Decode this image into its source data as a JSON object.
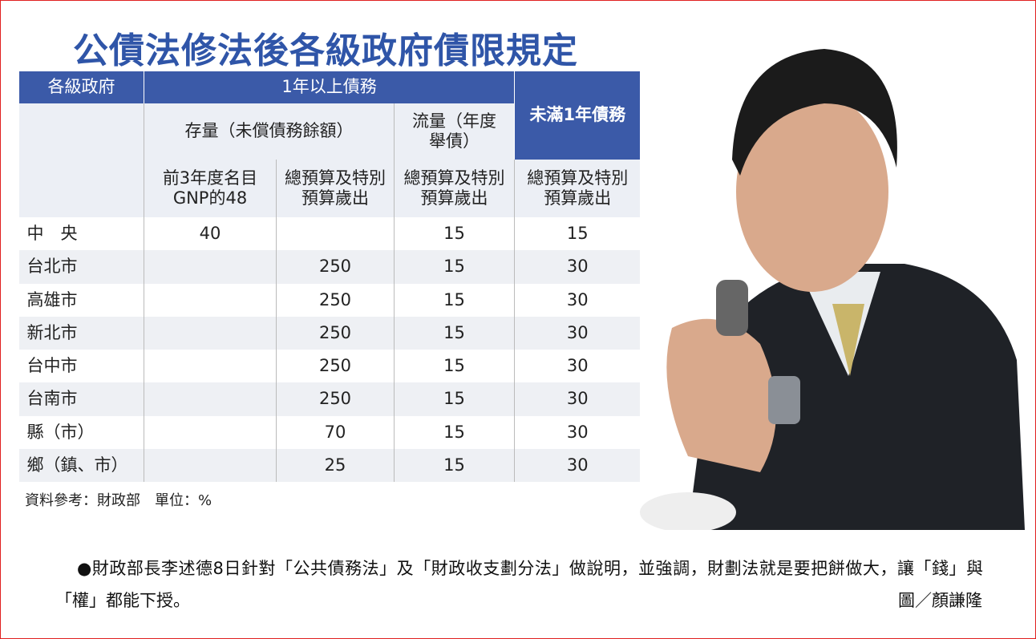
{
  "title": "公債法修法後各級政府債限規定",
  "table": {
    "headers": {
      "government": "各級政府",
      "long_term": "1年以上債務",
      "short_term": "未滿1年債務",
      "stock": "存量（未償債務餘額）",
      "flow": "流量（年度舉債）"
    },
    "subheaders": [
      "前3年度名目GNP的48",
      "總預算及特別預算歲出",
      "總預算及特別預算歲出",
      "總預算及特別預算歲出"
    ],
    "rows": [
      [
        "中　央",
        40,
        null,
        15,
        15
      ],
      [
        "台北市",
        null,
        250,
        15,
        30
      ],
      [
        "高雄市",
        null,
        250,
        15,
        30
      ],
      [
        "新北市",
        null,
        250,
        15,
        30
      ],
      [
        "台中市",
        null,
        250,
        15,
        30
      ],
      [
        "台南市",
        null,
        250,
        15,
        30
      ],
      [
        "縣（市）",
        null,
        70,
        15,
        30
      ],
      [
        "鄉（鎮、市）",
        null,
        25,
        15,
        30
      ]
    ]
  },
  "source": "資料參考：財政部　單位：%",
  "caption": "●財政部長李述德8日針對「公共債務法」及「財政收支劃分法」做說明，並強調，財劃法就是要把餅做大，讓「錢」與「權」都能下授。",
  "credit": "圖／顏謙隆"
}
